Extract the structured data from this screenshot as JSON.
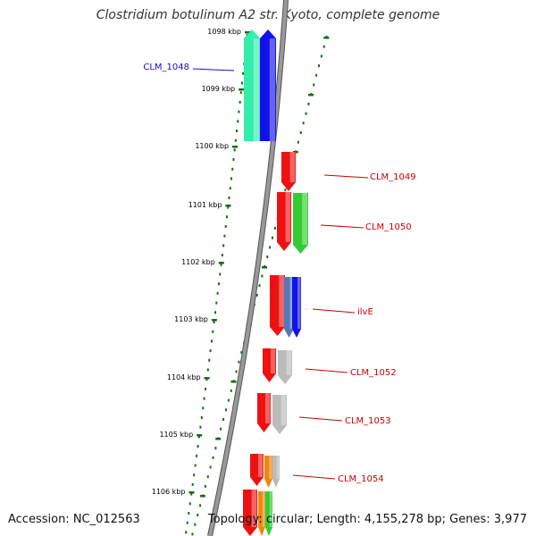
{
  "title": "Clostridium botulinum A2 str. Kyoto, complete genome",
  "footer": {
    "accession": "Accession: NC_012563",
    "summary": "Topology: circular; Length: 4,155,278 bp; Genes: 3,977"
  },
  "ticks": [
    "1098 kbp",
    "1099 kbp",
    "1100 kbp",
    "1101 kbp",
    "1102 kbp",
    "1103 kbp",
    "1104 kbp",
    "1105 kbp",
    "1106 kbp"
  ],
  "gene_labels": [
    {
      "name": "CLM_1048",
      "color": "#1010cc"
    },
    {
      "name": "CLM_1049",
      "color": "#cc0000"
    },
    {
      "name": "CLM_1050",
      "color": "#cc0000"
    },
    {
      "name": "ilvE",
      "color": "#cc0000"
    },
    {
      "name": "CLM_1052",
      "color": "#cc0000"
    },
    {
      "name": "CLM_1053",
      "color": "#cc0000"
    },
    {
      "name": "CLM_1054",
      "color": "#cc0000"
    }
  ],
  "colors": {
    "backbone": "#888888",
    "tick_mark": "#1a6b1a",
    "cds_red": "#ee1111",
    "cds_green": "#33cc33",
    "cds_blue": "#1111ee",
    "cds_aqua": "#33eeaa",
    "cds_steel": "#5577bb",
    "cds_gray": "#bbbbbb",
    "cds_orange": "#ee8811",
    "label_blue": "#1010cc",
    "label_red": "#cc0000"
  }
}
